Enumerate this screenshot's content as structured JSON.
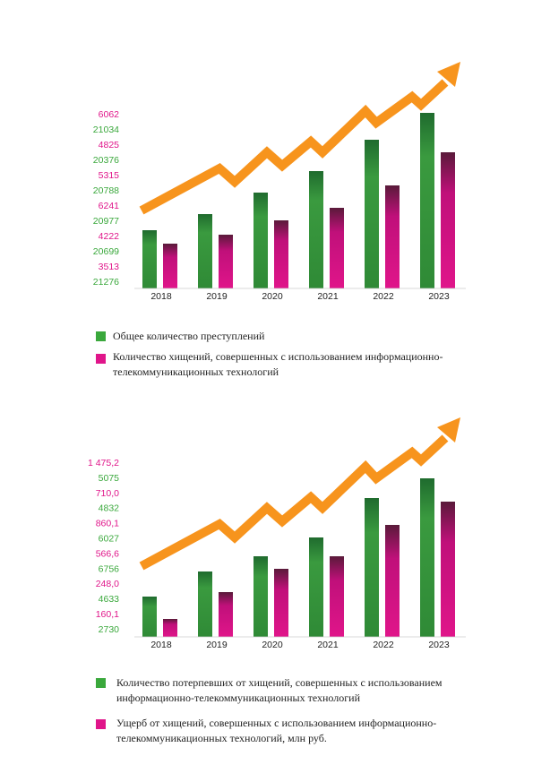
{
  "charts": [
    {
      "labels": [
        "6062",
        "21034",
        "4825",
        "20376",
        "5315",
        "20788",
        "6241",
        "20977",
        "4222",
        "20699",
        "3513",
        "21276"
      ],
      "years": [
        "2018",
        "2019",
        "2020",
        "2021",
        "2022",
        "2023"
      ],
      "legend": [
        "Общее количество преступлений",
        "Количество хищений, совершенных с использованием информационно-",
        "телекоммуникационных технологий"
      ]
    },
    {
      "labels": [
        "1 475,2",
        "5075",
        "710,0",
        "4832",
        "860,1",
        "6027",
        "566,6",
        "6756",
        "248,0",
        "4633",
        "160,1",
        "2730"
      ],
      "years": [
        "2018",
        "2019",
        "2020",
        "2021",
        "2022",
        "2023"
      ],
      "legend": [
        "Количество потерпевших от хищений, совершенных с использованием",
        "информационно-телекоммуникационных технологий",
        "Ущерб от хищений, совершенных с использованием информационно-",
        "телекоммуникационных технологий, млн руб."
      ]
    }
  ]
}
